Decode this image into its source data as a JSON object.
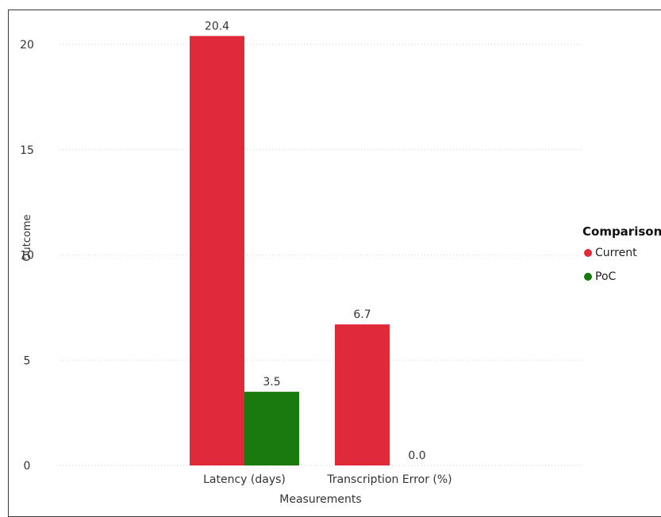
{
  "chart_data": {
    "type": "bar",
    "title": "",
    "xlabel": "Measurements",
    "ylabel": "Outcome",
    "categories": [
      "Latency (days)",
      "Transcription Error (%)"
    ],
    "series": [
      {
        "name": "Current",
        "values": [
          20.4,
          6.7
        ],
        "color": "#e02a3a"
      },
      {
        "name": "PoC",
        "values": [
          3.5,
          0.0
        ],
        "color": "#1a7a10"
      }
    ],
    "data_labels": [
      [
        "20.4",
        "6.7"
      ],
      [
        "3.5",
        "0.0"
      ]
    ],
    "yticks": [
      "0",
      "5",
      "10",
      "15",
      "20"
    ],
    "ylim": [
      0,
      22
    ],
    "grid": true,
    "legend": {
      "title": "Comparison",
      "placement": "right"
    }
  }
}
